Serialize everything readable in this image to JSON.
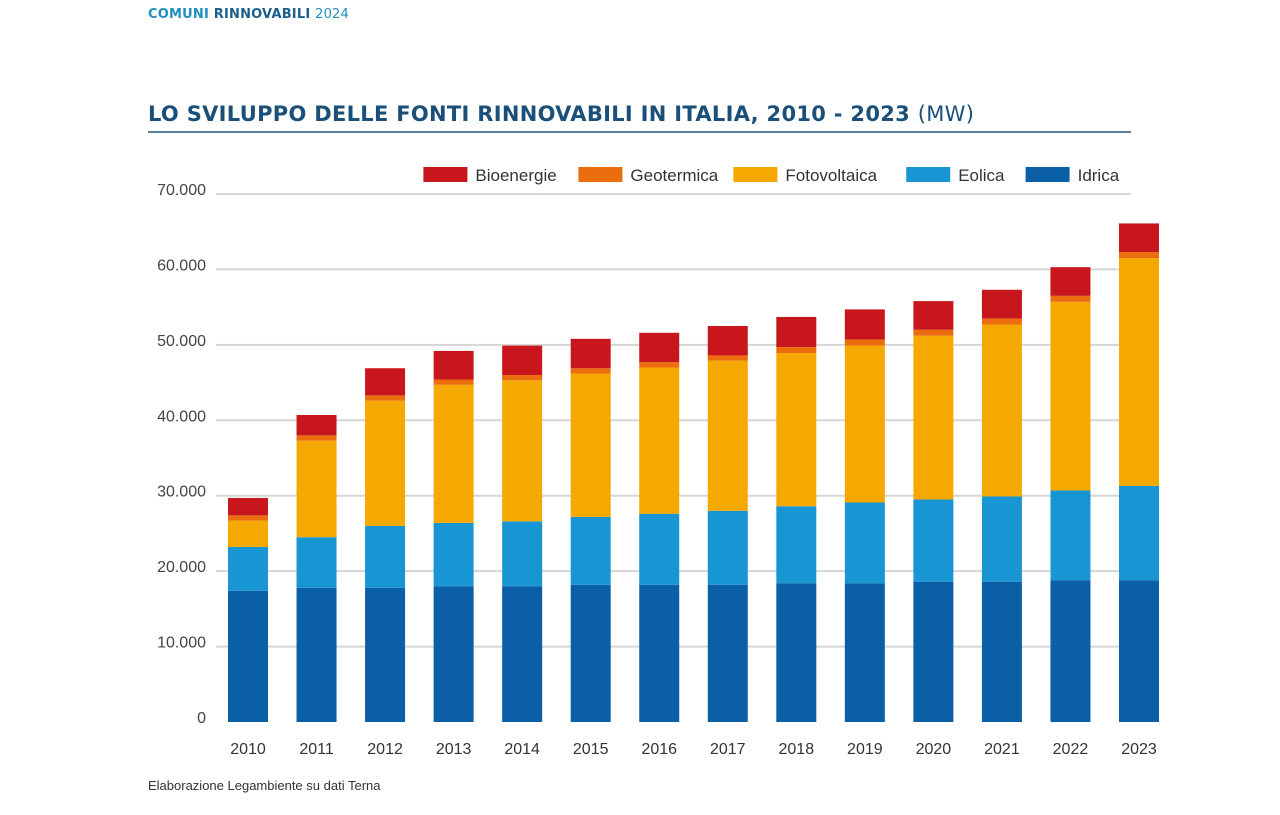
{
  "header": {
    "part1": "COMUNI",
    "part2": "RINNOVABILI",
    "part3": "2024"
  },
  "source_note": "Elaborazione Legambiente su dati Terna",
  "chart_data": {
    "type": "bar",
    "stacked": true,
    "title": "LO SVILUPPO DELLE FONTI RINNOVABILI IN ITALIA, 2010 - 2023",
    "title_unit": "(MW)",
    "xlabel": "",
    "ylabel": "",
    "ylim": [
      0,
      70000
    ],
    "y_ticks": [
      0,
      10000,
      20000,
      30000,
      40000,
      50000,
      60000,
      70000
    ],
    "y_tick_labels": [
      "0",
      "10.000",
      "20.000",
      "30.000",
      "40.000",
      "50.000",
      "60.000",
      "70.000"
    ],
    "grid": true,
    "legend_position": "top-right",
    "categories": [
      "2010",
      "2011",
      "2012",
      "2013",
      "2014",
      "2015",
      "2016",
      "2017",
      "2018",
      "2019",
      "2020",
      "2021",
      "2022",
      "2023"
    ],
    "legend_order": [
      "Bioenergie",
      "Geotermica",
      "Fotovoltaica",
      "Eolica",
      "Idrica"
    ],
    "series": [
      {
        "name": "Idrica",
        "color": "#0a5fa6",
        "values": [
          17400,
          17800,
          17800,
          18000,
          18000,
          18200,
          18200,
          18200,
          18400,
          18400,
          18600,
          18600,
          18800,
          18800
        ]
      },
      {
        "name": "Eolica",
        "color": "#1896d3",
        "values": [
          5800,
          6700,
          8200,
          8400,
          8600,
          9000,
          9400,
          9800,
          10200,
          10700,
          10900,
          11300,
          11900,
          12500
        ]
      },
      {
        "name": "Fotovoltaica",
        "color": "#f5a800",
        "values": [
          3500,
          12800,
          16600,
          18300,
          18700,
          19000,
          19400,
          19900,
          20300,
          20800,
          21700,
          22800,
          25000,
          30200
        ]
      },
      {
        "name": "Geotermica",
        "color": "#ec6d0e",
        "values": [
          700,
          700,
          700,
          700,
          700,
          700,
          700,
          700,
          800,
          800,
          800,
          800,
          800,
          800
        ]
      },
      {
        "name": "Bioenergie",
        "color": "#c8161d",
        "values": [
          2300,
          2700,
          3600,
          3800,
          3900,
          3900,
          3900,
          3900,
          4000,
          4000,
          3800,
          3800,
          3800,
          3800
        ]
      }
    ]
  }
}
